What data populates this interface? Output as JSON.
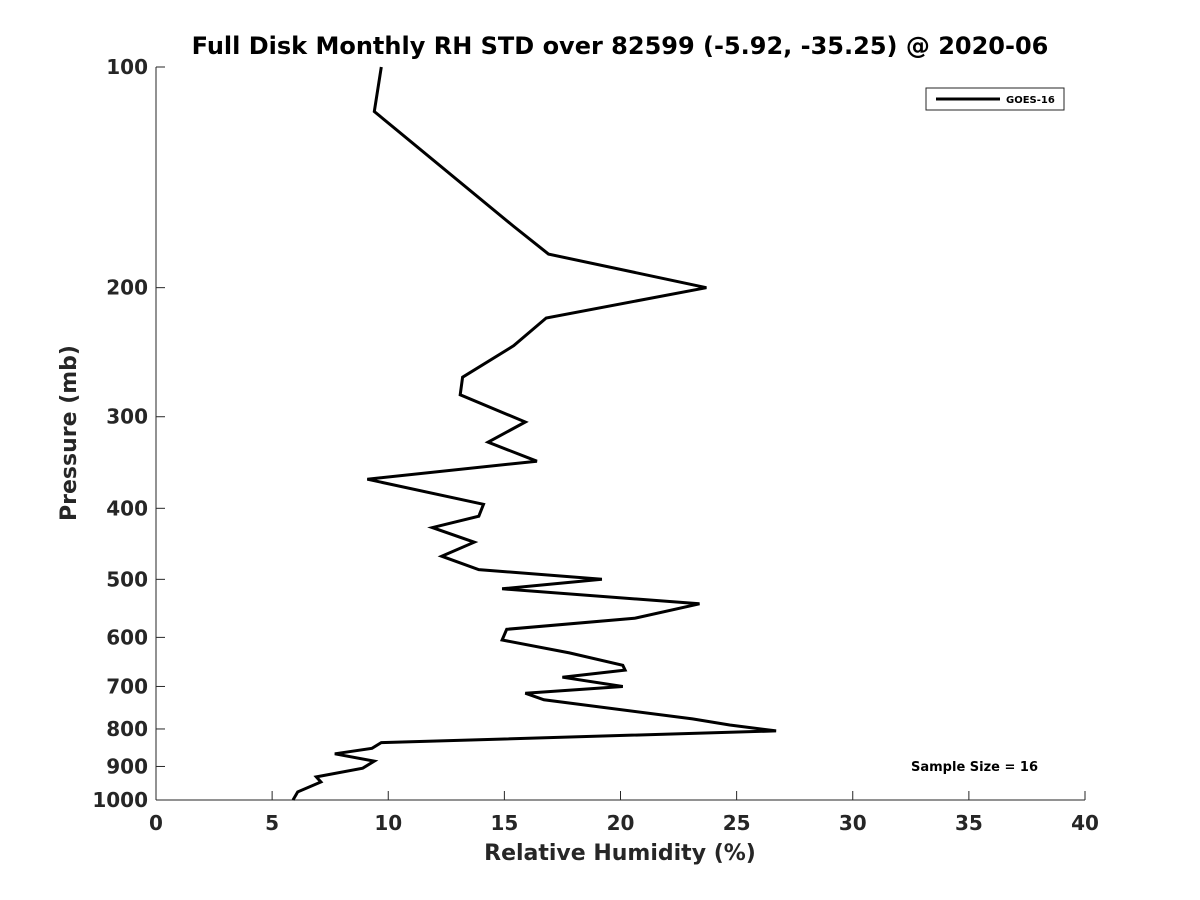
{
  "chart_data": {
    "type": "line",
    "title": "Full Disk Monthly RH STD over 82599 (-5.92, -35.25) @ 2020-06",
    "xlabel": "Relative Humidity (%)",
    "ylabel": "Pressure (mb)",
    "xlim": [
      0,
      40
    ],
    "ylim": [
      100,
      1000
    ],
    "yscale": "log",
    "y_reversed": true,
    "xticks": [
      0,
      5,
      10,
      15,
      20,
      25,
      30,
      35,
      40
    ],
    "yticks": [
      100,
      200,
      300,
      400,
      500,
      600,
      700,
      800,
      900,
      1000
    ],
    "grid": false,
    "legend_position": "top-right",
    "annotation": "Sample Size = 16",
    "series": [
      {
        "name": "GOES-16",
        "color": "#000000",
        "x": [
          9.7,
          9.4,
          15.4,
          16.9,
          23.7,
          16.8,
          15.4,
          13.2,
          13.1,
          15.9,
          14.3,
          16.4,
          9.1,
          14.1,
          13.9,
          11.9,
          13.7,
          12.3,
          13.9,
          19.2,
          14.9,
          23.4,
          20.6,
          15.1,
          14.9,
          17.8,
          20.1,
          20.2,
          17.5,
          20.1,
          15.9,
          16.7,
          23.1,
          24.7,
          26.7,
          9.7,
          9.3,
          7.7,
          9.4,
          8.9,
          6.9,
          7.1,
          6.1,
          5.9
        ],
        "y": [
          100,
          115,
          165,
          180,
          200,
          220,
          240,
          265,
          280,
          305,
          325,
          345,
          365,
          395,
          410,
          425,
          445,
          465,
          485,
          500,
          515,
          540,
          565,
          585,
          605,
          630,
          655,
          665,
          680,
          700,
          715,
          730,
          775,
          790,
          805,
          835,
          850,
          865,
          885,
          905,
          930,
          945,
          975,
          1000
        ]
      }
    ]
  }
}
